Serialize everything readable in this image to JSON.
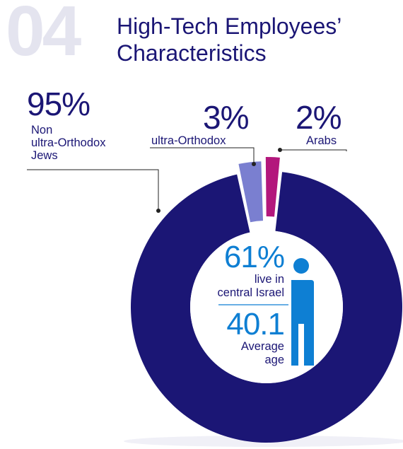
{
  "section_number": "04",
  "title_line1": "High-Tech Employees’",
  "title_line2": "Characteristics",
  "chart_data": {
    "type": "pie",
    "variant": "donut",
    "title": "High-Tech Employees’ Characteristics",
    "series": [
      {
        "name": "Non ultra-Orthodox Jews",
        "value": 95,
        "label": "95%",
        "color": "#1b1675"
      },
      {
        "name": "ultra-Orthodox",
        "value": 3,
        "label": "3%",
        "color": "#7a7fd0"
      },
      {
        "name": "Arabs",
        "value": 2,
        "label": "2%",
        "color": "#b3177c"
      }
    ],
    "center_stats": [
      {
        "value": "61%",
        "label_line1": "live in",
        "label_line2": "central Israel"
      },
      {
        "value": "40.1",
        "label_line1": "Average",
        "label_line2": "age"
      }
    ]
  },
  "labels": {
    "non_orthodox": {
      "pct": "95%",
      "line1": "Non",
      "line2": "ultra-Orthodox",
      "line3": "Jews"
    },
    "ultra_orthodox": {
      "pct": "3%",
      "line1": "ultra-Orthodox"
    },
    "arabs": {
      "pct": "2%",
      "line1": "Arabs"
    }
  },
  "colors": {
    "navy": "#1b1675",
    "accent_blue": "#0e7fd3",
    "number_grey": "#e4e4ef"
  }
}
